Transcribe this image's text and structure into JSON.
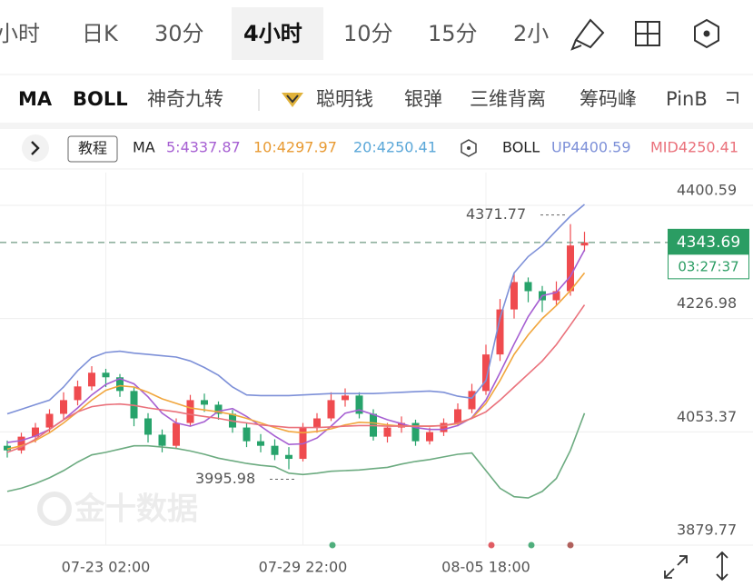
{
  "tabs": [
    "小时",
    "日K",
    "30分",
    "4小时",
    "10分",
    "15分",
    "2小"
  ],
  "active_tab": 3,
  "indicators": [
    "MA",
    "BOLL",
    "神奇九转",
    "聪明钱",
    "银弹",
    "三维背离",
    "筹码峰",
    "PinB"
  ],
  "legend": {
    "tutorial": "教程",
    "ma_label": "MA",
    "ma_values": [
      "5:4337.87",
      "10:4297.97",
      "20:4250.41"
    ],
    "boll_label": "BOLL",
    "boll_values": [
      "UP4400.59",
      "MID4250.41"
    ]
  },
  "watermark": "金十数据",
  "chart_data": {
    "type": "candlestick",
    "categories": [
      null,
      null,
      null,
      null,
      null,
      null,
      null,
      "07-23 02:00",
      null,
      null,
      null,
      null,
      null,
      null,
      null,
      null,
      null,
      null,
      null,
      null,
      null,
      "07-29 22:00",
      null,
      null,
      null,
      null,
      null,
      null,
      null,
      null,
      null,
      null,
      null,
      null,
      "08-05 18:00",
      null,
      null,
      null,
      null,
      null,
      null,
      null
    ],
    "open": [
      4032,
      4025,
      4046,
      4060,
      4081,
      4102,
      4123,
      4144,
      4137,
      4116,
      4074,
      4049,
      4032,
      4067,
      4102,
      4095,
      4081,
      4060,
      4039,
      4032,
      4018,
      4012,
      4060,
      4074,
      4102,
      4109,
      4081,
      4046,
      4060,
      4067,
      4039,
      4053,
      4067,
      4088,
      4116,
      4172,
      4241,
      4283,
      4269,
      4255,
      4269,
      4339
    ],
    "high": [
      4040,
      4052,
      4067,
      4088,
      4114,
      4132,
      4154,
      4150,
      4142,
      4122,
      4082,
      4057,
      4074,
      4110,
      4112,
      4100,
      4087,
      4067,
      4050,
      4042,
      4030,
      4067,
      4082,
      4114,
      4120,
      4114,
      4088,
      4067,
      4077,
      4072,
      4060,
      4074,
      4097,
      4127,
      4187,
      4257,
      4297,
      4290,
      4277,
      4284,
      4371.77,
      4360
    ],
    "low": [
      4014,
      4020,
      4037,
      4052,
      4072,
      4094,
      4117,
      4122,
      4107,
      4062,
      4037,
      4022,
      4027,
      4062,
      4084,
      4072,
      4052,
      4030,
      4022,
      4010,
      3995.98,
      4008,
      4052,
      4070,
      4092,
      4074,
      4040,
      4037,
      4052,
      4032,
      4034,
      4047,
      4062,
      4082,
      4110,
      4162,
      4227,
      4252,
      4237,
      4247,
      4262,
      4330
    ],
    "close": [
      4025,
      4046,
      4060,
      4081,
      4102,
      4123,
      4144,
      4137,
      4116,
      4074,
      4049,
      4032,
      4067,
      4102,
      4095,
      4081,
      4060,
      4039,
      4032,
      4018,
      4012,
      4060,
      4074,
      4102,
      4109,
      4081,
      4046,
      4060,
      4067,
      4039,
      4053,
      4067,
      4088,
      4116,
      4172,
      4241,
      4283,
      4269,
      4255,
      4269,
      4339,
      4343.69
    ],
    "up_color": "#ef4b4f",
    "down_color": "#27a36b",
    "lines": [
      {
        "color": "#a65fd2",
        "values": [
          4037,
          4040,
          4047,
          4057,
          4072,
          4090,
          4110,
          4126,
          4135,
          4127,
          4107,
          4082,
          4067,
          4062,
          4069,
          4085,
          4089,
          4077,
          4062,
          4047,
          4034,
          4035,
          4044,
          4062,
          4082,
          4087,
          4080,
          4072,
          4066,
          4060,
          4057,
          4057,
          4063,
          4075,
          4102,
          4144,
          4188,
          4230,
          4262,
          4267,
          4292,
          4332
        ]
      },
      {
        "color": "#f1a63d",
        "values": [
          4027,
          4032,
          4040,
          4052,
          4067,
          4084,
          4102,
          4117,
          4124,
          4122,
          4114,
          4104,
          4097,
          4090,
          4087,
          4084,
          4080,
          4074,
          4067,
          4060,
          4054,
          4052,
          4054,
          4058,
          4064,
          4068,
          4067,
          4064,
          4062,
          4062,
          4062,
          4063,
          4066,
          4074,
          4097,
          4132,
          4172,
          4202,
          4227,
          4247,
          4270,
          4297
        ]
      },
      {
        "color": "#ea717b",
        "values": [
          4022,
          4030,
          4042,
          4057,
          4072,
          4084,
          4092,
          4095,
          4096,
          4094,
          4090,
          4087,
          4084,
          4080,
          4077,
          4074,
          4070,
          4067,
          4064,
          4062,
          4060,
          4060,
          4060,
          4061,
          4062,
          4063,
          4063,
          4062,
          4062,
          4062,
          4062,
          4063,
          4067,
          4074,
          4084,
          4102,
          4122,
          4142,
          4162,
          4187,
          4217,
          4248
        ]
      },
      {
        "color": "#7d90d8",
        "values": [
          4081,
          4088,
          4095,
          4102,
          4122,
          4147,
          4167,
          4175,
          4177,
          4174,
          4172,
          4170,
          4168,
          4162,
          4152,
          4140,
          4122,
          4110,
          4109,
          4109,
          4109,
          4110,
          4111,
          4112,
          4112,
          4112,
          4112,
          4113,
          4114,
          4115,
          4116,
          4114,
          4108,
          4105,
          4132,
          4228,
          4297,
          4322,
          4339,
          4362,
          4384,
          4402
        ]
      },
      {
        "color": "#6cab80",
        "values": [
          3962,
          3967,
          3974,
          3983,
          3994,
          4007,
          4018,
          4022,
          4027,
          4032,
          4032,
          4030,
          4028,
          4024,
          4019,
          4013,
          4009,
          4005,
          4002,
          4000,
          3990,
          3988,
          3990,
          3993,
          3994,
          3995,
          3997,
          3999,
          4004,
          4008,
          4011,
          4015,
          4019,
          4021,
          3994,
          3967,
          3954,
          3952,
          3962,
          3982,
          4025,
          4082
        ]
      }
    ],
    "ylim": [
      3879.77,
      4450.7
    ],
    "yticks": [
      4400.59,
      4226.98,
      4053.37,
      3879.77
    ],
    "grid": true,
    "high_label": 4371.77,
    "low_label": 3995.98,
    "last_price": 4343.69,
    "countdown": "03:27:37"
  }
}
